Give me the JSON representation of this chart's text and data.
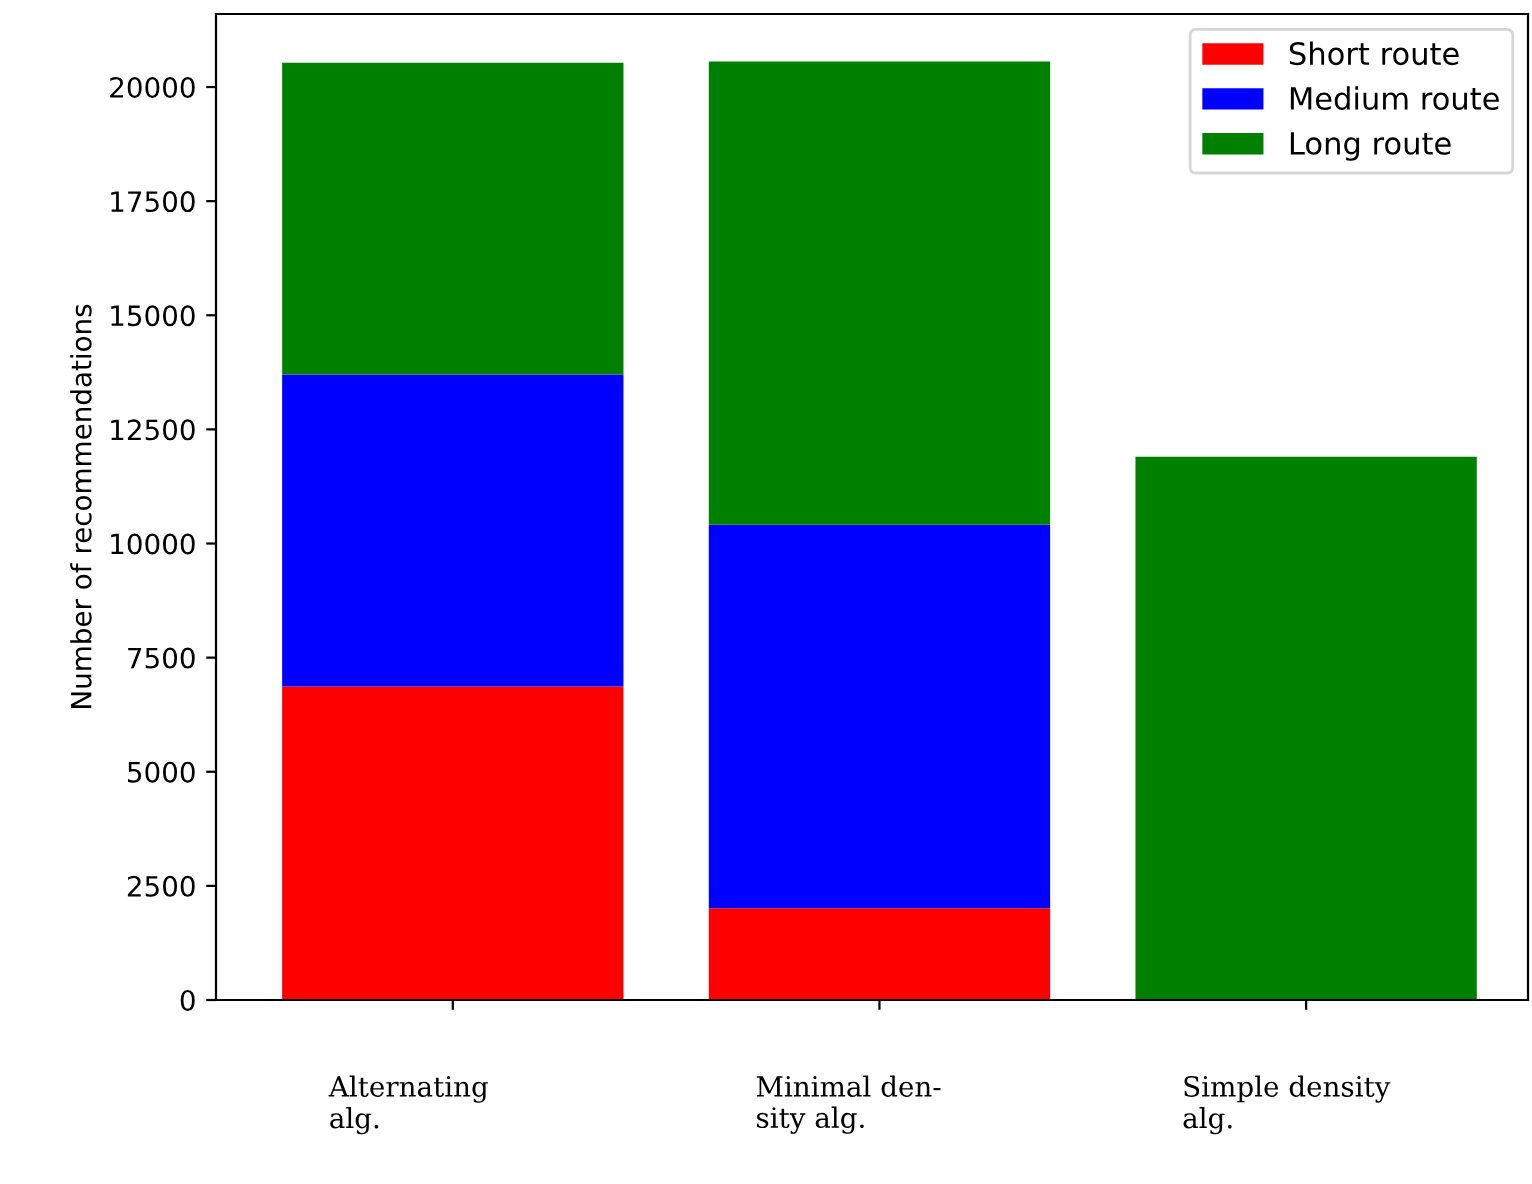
{
  "chart_data": {
    "type": "bar",
    "stacked": true,
    "ylabel": "Number of recommendations",
    "categories": [
      "Alternating\nalg.",
      "Minimal den-\nsity alg.",
      "Simple density\nalg."
    ],
    "series": [
      {
        "name": "Short route",
        "color": "#ff0000",
        "values": [
          6870,
          2010,
          0
        ]
      },
      {
        "name": "Medium route",
        "color": "#0000ff",
        "values": [
          6830,
          8400,
          0
        ]
      },
      {
        "name": "Long route",
        "color": "#008000",
        "values": [
          6830,
          10150,
          11900
        ]
      }
    ],
    "ylim": [
      0,
      21600
    ],
    "yticks": [
      0,
      2500,
      5000,
      7500,
      10000,
      12500,
      15000,
      17500,
      20000
    ],
    "legend": "top right",
    "grid": false
  }
}
